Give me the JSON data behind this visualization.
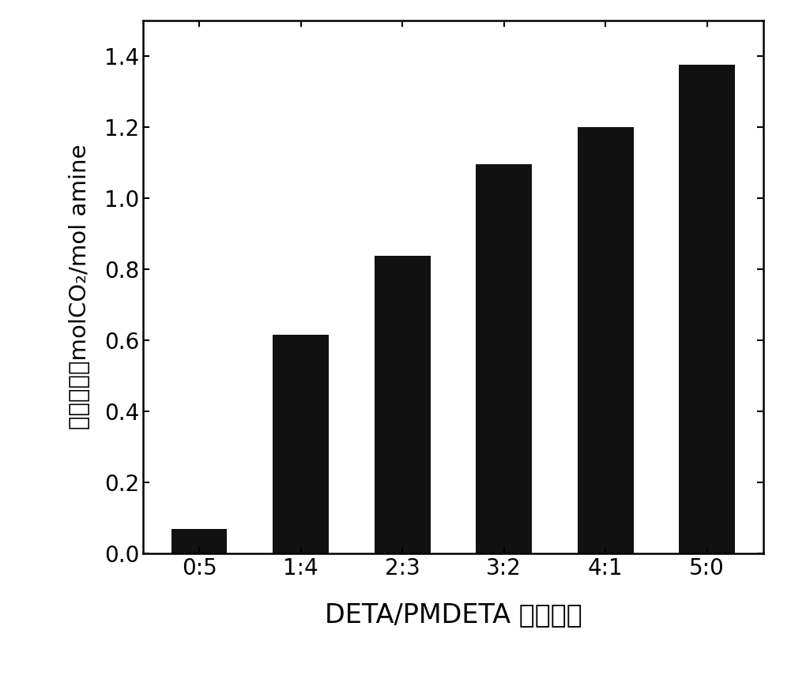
{
  "categories": [
    "0:5",
    "1:4",
    "2:3",
    "3:2",
    "4:1",
    "5:0"
  ],
  "values": [
    0.068,
    0.615,
    0.838,
    1.095,
    1.2,
    1.375
  ],
  "bar_color": "#111111",
  "bar_edge_color": "#111111",
  "ylabel_chinese": "吸收负荷，molCO₂/mol amine",
  "xlabel": "DETA/PMDETA 摩尔配比",
  "ylim": [
    0,
    1.5
  ],
  "yticks": [
    0.0,
    0.2,
    0.4,
    0.6,
    0.8,
    1.0,
    1.2,
    1.4
  ],
  "background_color": "#ffffff",
  "bar_width": 0.55,
  "ylabel_fontsize": 21,
  "xlabel_fontsize": 24,
  "tick_fontsize": 20,
  "spine_linewidth": 1.8
}
